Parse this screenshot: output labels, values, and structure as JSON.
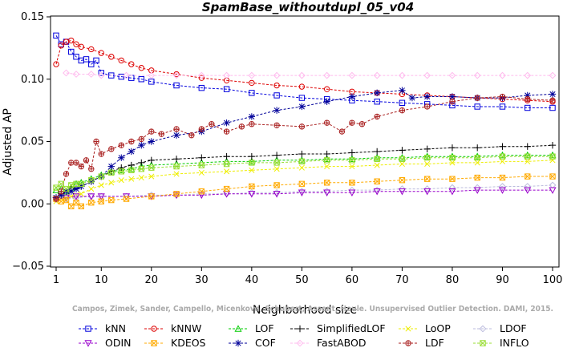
{
  "chart_data": {
    "type": "line",
    "title": "SpamBase_withoutdupl_05_v04",
    "xlabel": "Neighborhood size",
    "ylabel": "Adjusted AP",
    "xlim": [
      1,
      100
    ],
    "ylim": [
      -0.05,
      0.15
    ],
    "xticks": [
      1,
      10,
      20,
      30,
      40,
      50,
      60,
      70,
      80,
      90,
      100
    ],
    "yticks": [
      -0.05,
      0.0,
      0.05,
      0.1,
      0.15
    ],
    "ytick_labels": [
      "−0.05",
      "0.00",
      "0.05",
      "0.10",
      "0.15"
    ],
    "credit": "Campos, Zimek, Sander, Campello, Micenkova, Schubert, Assent, Houle. Unsupervised Outlier Detection. DAMI, 2015.",
    "grid": false,
    "legend_position": "bottom",
    "series": [
      {
        "name": "kNN",
        "color": "#0000dd",
        "marker": "square",
        "x": [
          1,
          2,
          3,
          4,
          5,
          6,
          7,
          8,
          9,
          10,
          12,
          14,
          16,
          18,
          20,
          25,
          30,
          35,
          40,
          45,
          50,
          55,
          60,
          65,
          70,
          75,
          80,
          85,
          90,
          95,
          100
        ],
        "y": [
          0.135,
          0.128,
          0.13,
          0.122,
          0.118,
          0.115,
          0.116,
          0.112,
          0.115,
          0.105,
          0.103,
          0.102,
          0.101,
          0.1,
          0.098,
          0.095,
          0.093,
          0.092,
          0.089,
          0.087,
          0.085,
          0.084,
          0.083,
          0.082,
          0.081,
          0.08,
          0.079,
          0.078,
          0.078,
          0.077,
          0.077
        ]
      },
      {
        "name": "kNNW",
        "color": "#dd0000",
        "marker": "circle",
        "x": [
          1,
          2,
          3,
          4,
          5,
          6,
          8,
          10,
          12,
          14,
          16,
          18,
          20,
          25,
          30,
          35,
          40,
          45,
          50,
          55,
          60,
          65,
          70,
          75,
          80,
          85,
          90,
          95,
          100
        ],
        "y": [
          0.112,
          0.127,
          0.13,
          0.131,
          0.128,
          0.126,
          0.124,
          0.121,
          0.118,
          0.115,
          0.112,
          0.109,
          0.107,
          0.104,
          0.101,
          0.099,
          0.097,
          0.095,
          0.094,
          0.092,
          0.09,
          0.089,
          0.088,
          0.087,
          0.086,
          0.085,
          0.084,
          0.083,
          0.082
        ]
      },
      {
        "name": "LOF",
        "color": "#00cc00",
        "marker": "triangle",
        "x": [
          1,
          2,
          3,
          4,
          5,
          6,
          8,
          10,
          12,
          14,
          16,
          18,
          20,
          25,
          30,
          35,
          40,
          45,
          50,
          55,
          60,
          65,
          70,
          75,
          80,
          85,
          90,
          95,
          100
        ],
        "y": [
          0.011,
          0.012,
          0.01,
          0.013,
          0.016,
          0.017,
          0.02,
          0.023,
          0.026,
          0.027,
          0.028,
          0.03,
          0.031,
          0.032,
          0.033,
          0.034,
          0.034,
          0.035,
          0.035,
          0.036,
          0.036,
          0.037,
          0.037,
          0.038,
          0.038,
          0.038,
          0.039,
          0.039,
          0.039
        ]
      },
      {
        "name": "SimplifiedLOF",
        "color": "#000000",
        "marker": "plus",
        "x": [
          1,
          2,
          3,
          4,
          5,
          6,
          8,
          10,
          12,
          14,
          16,
          18,
          20,
          25,
          30,
          35,
          40,
          45,
          50,
          55,
          60,
          65,
          70,
          75,
          80,
          85,
          90,
          95,
          100
        ],
        "y": [
          0.005,
          0.008,
          0.01,
          0.013,
          0.012,
          0.014,
          0.018,
          0.022,
          0.026,
          0.029,
          0.031,
          0.033,
          0.035,
          0.036,
          0.037,
          0.038,
          0.038,
          0.039,
          0.04,
          0.04,
          0.041,
          0.042,
          0.043,
          0.044,
          0.045,
          0.045,
          0.046,
          0.046,
          0.047
        ]
      },
      {
        "name": "LoOP",
        "color": "#eeee00",
        "marker": "x",
        "x": [
          1,
          2,
          3,
          4,
          5,
          6,
          8,
          10,
          12,
          14,
          16,
          18,
          20,
          25,
          30,
          35,
          40,
          45,
          50,
          55,
          60,
          65,
          70,
          75,
          80,
          85,
          90,
          95,
          100
        ],
        "y": [
          0.002,
          0.004,
          0.005,
          0.006,
          0.007,
          0.008,
          0.012,
          0.015,
          0.017,
          0.019,
          0.02,
          0.021,
          0.022,
          0.024,
          0.025,
          0.026,
          0.027,
          0.028,
          0.029,
          0.03,
          0.03,
          0.031,
          0.032,
          0.032,
          0.033,
          0.033,
          0.034,
          0.034,
          0.035
        ]
      },
      {
        "name": "LDOF",
        "color": "#bbbbdd",
        "marker": "diamond",
        "x": [
          1,
          3,
          5,
          8,
          10,
          15,
          20,
          25,
          30,
          35,
          40,
          45,
          50,
          55,
          60,
          65,
          70,
          75,
          80,
          85,
          90,
          95,
          100
        ],
        "y": [
          0.004,
          0.004,
          0.005,
          0.006,
          0.006,
          0.006,
          0.007,
          0.007,
          0.008,
          0.008,
          0.009,
          0.009,
          0.01,
          0.01,
          0.011,
          0.011,
          0.012,
          0.012,
          0.013,
          0.013,
          0.014,
          0.014,
          0.015
        ]
      },
      {
        "name": "ODIN",
        "color": "#9900cc",
        "marker": "triangle-down",
        "x": [
          1,
          3,
          5,
          8,
          10,
          15,
          20,
          25,
          30,
          35,
          40,
          45,
          50,
          55,
          60,
          65,
          70,
          75,
          80,
          85,
          90,
          95,
          100
        ],
        "y": [
          0.004,
          0.005,
          0.006,
          0.006,
          0.006,
          0.006,
          0.006,
          0.007,
          0.007,
          0.008,
          0.008,
          0.008,
          0.009,
          0.009,
          0.009,
          0.01,
          0.01,
          0.01,
          0.01,
          0.011,
          0.011,
          0.011,
          0.011
        ]
      },
      {
        "name": "KDEOS",
        "color": "#ffaa00",
        "marker": "square-x",
        "x": [
          1,
          2,
          3,
          4,
          5,
          6,
          8,
          10,
          12,
          15,
          20,
          25,
          30,
          35,
          40,
          45,
          50,
          55,
          60,
          65,
          70,
          75,
          80,
          85,
          90,
          95,
          100
        ],
        "y": [
          0.004,
          0.002,
          0.003,
          -0.002,
          0.001,
          -0.002,
          0.001,
          0.002,
          0.003,
          0.004,
          0.006,
          0.008,
          0.01,
          0.012,
          0.014,
          0.015,
          0.016,
          0.017,
          0.017,
          0.018,
          0.019,
          0.02,
          0.02,
          0.021,
          0.021,
          0.022,
          0.022
        ]
      },
      {
        "name": "COF",
        "color": "#000099",
        "marker": "star",
        "x": [
          1,
          2,
          3,
          4,
          5,
          6,
          8,
          10,
          12,
          14,
          16,
          18,
          20,
          25,
          30,
          35,
          40,
          45,
          50,
          55,
          60,
          65,
          70,
          72,
          75,
          80,
          85,
          90,
          95,
          100
        ],
        "y": [
          0.005,
          0.007,
          0.01,
          0.01,
          0.012,
          0.014,
          0.018,
          0.022,
          0.03,
          0.037,
          0.042,
          0.047,
          0.05,
          0.055,
          0.058,
          0.065,
          0.07,
          0.075,
          0.078,
          0.082,
          0.086,
          0.089,
          0.091,
          0.085,
          0.086,
          0.086,
          0.085,
          0.085,
          0.087,
          0.088
        ]
      },
      {
        "name": "FastABOD",
        "color": "#ffbbee",
        "marker": "diamond",
        "x": [
          3,
          5,
          8,
          10,
          15,
          20,
          25,
          30,
          35,
          40,
          45,
          50,
          55,
          60,
          65,
          70,
          75,
          80,
          85,
          90,
          95,
          100
        ],
        "y": [
          0.105,
          0.104,
          0.104,
          0.103,
          0.103,
          0.103,
          0.103,
          0.103,
          0.103,
          0.103,
          0.103,
          0.103,
          0.103,
          0.103,
          0.103,
          0.103,
          0.103,
          0.103,
          0.103,
          0.103,
          0.103,
          0.103
        ]
      },
      {
        "name": "LDF",
        "color": "#aa2222",
        "marker": "circle-plus",
        "x": [
          1,
          2,
          3,
          4,
          5,
          6,
          7,
          8,
          9,
          10,
          12,
          14,
          16,
          18,
          20,
          22,
          25,
          28,
          30,
          32,
          35,
          38,
          40,
          45,
          50,
          55,
          58,
          60,
          62,
          65,
          70,
          75,
          80,
          85,
          90,
          95,
          100
        ],
        "y": [
          0.004,
          0.01,
          0.024,
          0.033,
          0.033,
          0.03,
          0.035,
          0.028,
          0.05,
          0.04,
          0.044,
          0.047,
          0.05,
          0.052,
          0.058,
          0.056,
          0.06,
          0.055,
          0.06,
          0.064,
          0.058,
          0.062,
          0.064,
          0.063,
          0.062,
          0.065,
          0.058,
          0.065,
          0.064,
          0.07,
          0.075,
          0.078,
          0.082,
          0.085,
          0.086,
          0.084,
          0.083
        ]
      },
      {
        "name": "INFLO",
        "color": "#99dd33",
        "marker": "square-x",
        "x": [
          1,
          2,
          3,
          4,
          5,
          6,
          8,
          10,
          12,
          14,
          16,
          18,
          20,
          25,
          30,
          35,
          40,
          45,
          50,
          55,
          60,
          65,
          70,
          75,
          80,
          85,
          90,
          95,
          100
        ],
        "y": [
          0.013,
          0.016,
          0.012,
          0.015,
          0.016,
          0.016,
          0.019,
          0.022,
          0.025,
          0.026,
          0.027,
          0.028,
          0.029,
          0.03,
          0.031,
          0.032,
          0.033,
          0.033,
          0.034,
          0.035,
          0.035,
          0.036,
          0.036,
          0.037,
          0.037,
          0.037,
          0.038,
          0.038,
          0.038
        ]
      }
    ],
    "legend_rows": [
      [
        "kNN",
        "kNNW",
        "LOF",
        "SimplifiedLOF",
        "LoOP",
        "LDOF"
      ],
      [
        "ODIN",
        "KDEOS",
        "COF",
        "FastABOD",
        "LDF",
        "INFLO"
      ]
    ]
  }
}
